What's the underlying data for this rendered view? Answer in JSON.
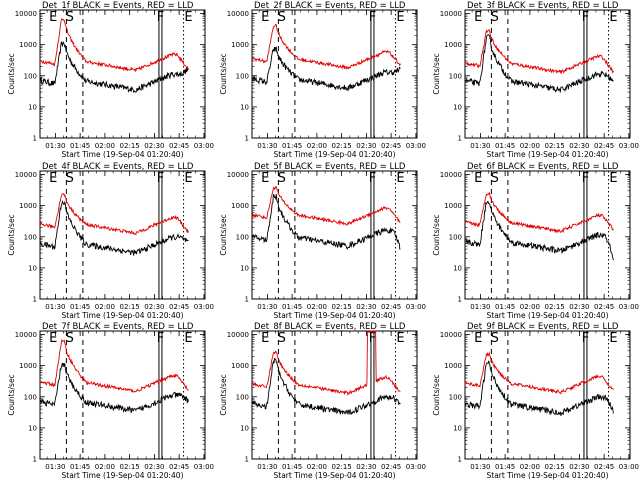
{
  "figure": {
    "xlabel": "Start Time (19-Sep-04 01:20:40)",
    "ylabel": "Counts/sec",
    "x_ticks": [
      "01:30",
      "01:45",
      "02:00",
      "02:15",
      "02:30",
      "02:45",
      "03:00"
    ],
    "y_ticks": [
      "1",
      "10",
      "100",
      "1000",
      "10000"
    ]
  },
  "chart_data": [
    {
      "type": "line",
      "title": "Det_1f BLACK = Events, RED = LLD",
      "yscale": "log",
      "ylim": [
        1,
        13000
      ],
      "xlim_minutes_from_start": [
        0,
        100
      ],
      "series": [
        {
          "name": "BLACK",
          "color": "#000000",
          "profile": "black",
          "base": 35,
          "peak": 1100,
          "end": 170
        },
        {
          "name": "RED",
          "color": "#e00000",
          "profile": "red",
          "base": 150,
          "peak": 6500,
          "end": 160
        }
      ],
      "markers": {
        "E1": 12,
        "S": 21,
        "E2": 95,
        "solid": 73,
        "dash1": 16,
        "dash2": 26,
        "dot": 87
      },
      "letters": [
        {
          "t": "E",
          "x": 8
        },
        {
          "t": "S",
          "x": 18
        },
        {
          "t": "F",
          "x": 73
        },
        {
          "t": "E",
          "x": 90
        }
      ]
    },
    {
      "type": "line",
      "title": "Det_2f BLACK = Events, RED = LLD",
      "yscale": "log",
      "ylim": [
        1,
        13000
      ],
      "xlim_minutes_from_start": [
        0,
        100
      ],
      "series": [
        {
          "name": "BLACK",
          "color": "#000000",
          "profile": "black",
          "base": 40,
          "peak": 700,
          "end": 160
        },
        {
          "name": "RED",
          "color": "#e00000",
          "profile": "red",
          "base": 180,
          "peak": 4000,
          "end": 220
        }
      ],
      "markers": {
        "E1": 12,
        "S": 21,
        "E2": 95,
        "solid": 73,
        "dash1": 16,
        "dash2": 26,
        "dot": 87
      },
      "letters": [
        {
          "t": "E",
          "x": 8
        },
        {
          "t": "S",
          "x": 18
        },
        {
          "t": "F",
          "x": 73
        },
        {
          "t": "E",
          "x": 90
        }
      ]
    },
    {
      "type": "line",
      "title": "Det_3f BLACK = Events, RED = LLD",
      "yscale": "log",
      "ylim": [
        1,
        13000
      ],
      "xlim_minutes_from_start": [
        0,
        100
      ],
      "series": [
        {
          "name": "BLACK",
          "color": "#000000",
          "profile": "black",
          "base": 35,
          "peak": 1700,
          "end": 60
        },
        {
          "name": "RED",
          "color": "#e00000",
          "profile": "red",
          "base": 130,
          "peak": 2800,
          "end": 130
        }
      ],
      "markers": {
        "E1": 12,
        "S": 21,
        "E2": 95,
        "solid": 73,
        "dash1": 16,
        "dash2": 26,
        "dot": 87
      },
      "letters": [
        {
          "t": "E",
          "x": 8
        },
        {
          "t": "S",
          "x": 18
        },
        {
          "t": "F",
          "x": 73
        },
        {
          "t": "E",
          "x": 90
        }
      ]
    },
    {
      "type": "line",
      "title": "Det_4f BLACK = Events, RED = LLD",
      "yscale": "log",
      "ylim": [
        1,
        13000
      ],
      "xlim_minutes_from_start": [
        0,
        100
      ],
      "series": [
        {
          "name": "BLACK",
          "color": "#000000",
          "profile": "black",
          "base": 30,
          "peak": 1300,
          "end": 60
        },
        {
          "name": "RED",
          "color": "#e00000",
          "profile": "red",
          "base": 130,
          "peak": 2300,
          "end": 140
        }
      ],
      "markers": {
        "E1": 12,
        "S": 21,
        "E2": 95,
        "solid": 73,
        "dash1": 16,
        "dash2": 26,
        "dot": 87
      },
      "letters": [
        {
          "t": "E",
          "x": 8
        },
        {
          "t": "S",
          "x": 18
        },
        {
          "t": "F",
          "x": 73
        },
        {
          "t": "E",
          "x": 90
        }
      ]
    },
    {
      "type": "line",
      "title": "Det_5f BLACK = Events, RED = LLD",
      "yscale": "log",
      "ylim": [
        1,
        13000
      ],
      "xlim_minutes_from_start": [
        0,
        100
      ],
      "series": [
        {
          "name": "BLACK",
          "color": "#000000",
          "profile": "black",
          "base": 50,
          "peak": 2000,
          "end": 40
        },
        {
          "name": "RED",
          "color": "#e00000",
          "profile": "red",
          "base": 260,
          "peak": 3800,
          "end": 270
        }
      ],
      "markers": {
        "E1": 12,
        "S": 21,
        "E2": 95,
        "solid": 73,
        "dash1": 16,
        "dash2": 26,
        "dot": 87
      },
      "letters": [
        {
          "t": "E",
          "x": 8
        },
        {
          "t": "S",
          "x": 18
        },
        {
          "t": "F",
          "x": 73
        },
        {
          "t": "E",
          "x": 90
        }
      ]
    },
    {
      "type": "line",
      "title": "Det_6f BLACK = Events, RED = LLD",
      "yscale": "log",
      "ylim": [
        1,
        13000
      ],
      "xlim_minutes_from_start": [
        0,
        100
      ],
      "series": [
        {
          "name": "BLACK",
          "color": "#000000",
          "profile": "black",
          "base": 35,
          "peak": 1400,
          "end": 15
        },
        {
          "name": "RED",
          "color": "#e00000",
          "profile": "red",
          "base": 150,
          "peak": 2500,
          "end": 170
        }
      ],
      "markers": {
        "E1": 12,
        "S": 21,
        "E2": 95,
        "solid": 73,
        "dash1": 16,
        "dash2": 26,
        "dot": 87
      },
      "letters": [
        {
          "t": "E",
          "x": 8
        },
        {
          "t": "S",
          "x": 18
        },
        {
          "t": "F",
          "x": 73
        },
        {
          "t": "E",
          "x": 90
        }
      ]
    },
    {
      "type": "line",
      "title": "Det_7f BLACK = Events, RED = LLD",
      "yscale": "log",
      "ylim": [
        1,
        13000
      ],
      "xlim_minutes_from_start": [
        0,
        100
      ],
      "series": [
        {
          "name": "BLACK",
          "color": "#000000",
          "profile": "black",
          "base": 35,
          "peak": 1100,
          "end": 70
        },
        {
          "name": "RED",
          "color": "#e00000",
          "profile": "red",
          "base": 150,
          "peak": 6000,
          "end": 160
        }
      ],
      "markers": {
        "E1": 12,
        "S": 21,
        "E2": 95,
        "solid": 73,
        "dash1": 16,
        "dash2": 26,
        "dot": 87
      },
      "letters": [
        {
          "t": "E",
          "x": 8
        },
        {
          "t": "S",
          "x": 18
        },
        {
          "t": "F",
          "x": 73
        },
        {
          "t": "E",
          "x": 90
        }
      ]
    },
    {
      "type": "line",
      "title": "Det_8f BLACK = Events, RED = LLD",
      "yscale": "log",
      "ylim": [
        1,
        13000
      ],
      "xlim_minutes_from_start": [
        0,
        100
      ],
      "series": [
        {
          "name": "BLACK",
          "color": "#000000",
          "profile": "black",
          "base": 30,
          "peak": 1400,
          "end": 60
        },
        {
          "name": "RED",
          "color": "#e00000",
          "profile": "red",
          "base": 130,
          "peak": 2700,
          "end": 130,
          "spike": {
            "from": 70,
            "to": 75,
            "value": 13000
          }
        }
      ],
      "markers": {
        "E1": 12,
        "S": 21,
        "E2": 95,
        "solid": 73,
        "dash1": 16,
        "dash2": 26,
        "dot": 87
      },
      "letters": [
        {
          "t": "E",
          "x": 8
        },
        {
          "t": "S",
          "x": 18
        },
        {
          "t": "F",
          "x": 73
        },
        {
          "t": "E",
          "x": 90
        }
      ]
    },
    {
      "type": "line",
      "title": "Det_9f BLACK = Events, RED = LLD",
      "yscale": "log",
      "ylim": [
        1,
        13000
      ],
      "xlim_minutes_from_start": [
        0,
        100
      ],
      "series": [
        {
          "name": "BLACK",
          "color": "#000000",
          "profile": "black",
          "base": 30,
          "peak": 1200,
          "end": 30
        },
        {
          "name": "RED",
          "color": "#e00000",
          "profile": "red",
          "base": 140,
          "peak": 2300,
          "end": 160
        }
      ],
      "markers": {
        "E1": 12,
        "S": 21,
        "E2": 95,
        "solid": 73,
        "dash1": 16,
        "dash2": 26,
        "dot": 87
      },
      "letters": [
        {
          "t": "E",
          "x": 8
        },
        {
          "t": "S",
          "x": 18
        },
        {
          "t": "F",
          "x": 73
        },
        {
          "t": "E",
          "x": 90
        }
      ]
    }
  ]
}
